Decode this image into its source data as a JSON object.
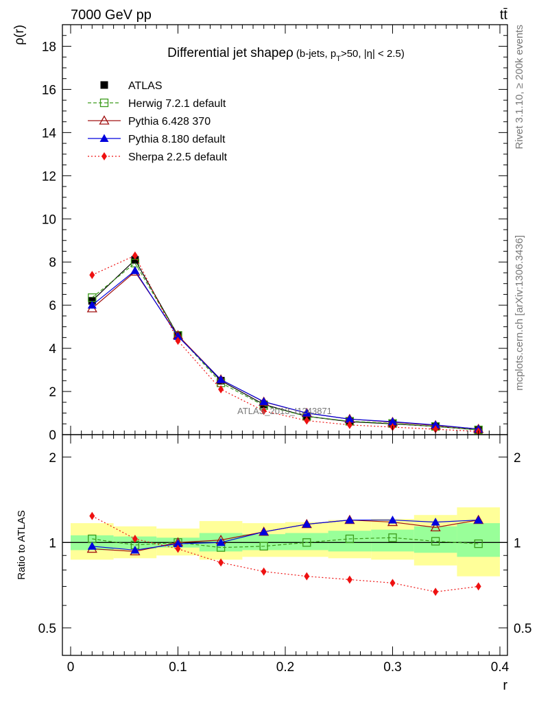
{
  "header": {
    "left": "7000 GeV pp",
    "right": "tt̄"
  },
  "side_text": {
    "rivet": "Rivet 3.1.10, ≥ 200k events",
    "mcplots": "mcplots.cern.ch [arXiv:1306.3436]"
  },
  "watermark": "ATLAS_2013_I1243871",
  "colors": {
    "atlas": "#000000",
    "herwig": "#3a9a1a",
    "pythia6": "#a01010",
    "pythia8": "#0000dd",
    "sherpa": "#ee1111",
    "band_inner": "#99ff99",
    "band_outer": "#ffff99"
  },
  "chart_data": [
    {
      "type": "line",
      "title": "Differential jet shapeρ",
      "title_small": "(b-jets, p",
      "title_sub": "T",
      "title_rest": ">50, |η| < 2.5)",
      "ylabel": "ρ(r)",
      "xlabel": "",
      "xlim": [
        0,
        0.4
      ],
      "ylim": [
        0,
        19
      ],
      "yticks": [
        0,
        2,
        4,
        6,
        8,
        10,
        12,
        14,
        16,
        18
      ],
      "legend_position": "top-left",
      "x": [
        0.02,
        0.06,
        0.1,
        0.14,
        0.18,
        0.22,
        0.26,
        0.3,
        0.34,
        0.38
      ],
      "series": [
        {
          "name": "ATLAS",
          "style": "data",
          "values": [
            6.2,
            8.1,
            4.6,
            2.5,
            1.4,
            0.85,
            0.6,
            0.5,
            0.38,
            0.22
          ]
        },
        {
          "name": "Herwig 7.2.1 default",
          "style": "herwig",
          "values": [
            6.35,
            7.95,
            4.6,
            2.4,
            1.35,
            0.85,
            0.62,
            0.52,
            0.38,
            0.22
          ]
        },
        {
          "name": "Pythia 6.428 370",
          "style": "pythia6",
          "values": [
            5.85,
            7.55,
            4.6,
            2.55,
            1.52,
            1.0,
            0.72,
            0.58,
            0.43,
            0.26
          ]
        },
        {
          "name": "Pythia 8.180 default",
          "style": "pythia8",
          "values": [
            6.0,
            7.6,
            4.55,
            2.55,
            1.53,
            1.0,
            0.72,
            0.6,
            0.45,
            0.26
          ]
        },
        {
          "name": "Sherpa 2.2.5 default",
          "style": "sherpa",
          "values": [
            7.4,
            8.3,
            4.35,
            2.1,
            1.1,
            0.65,
            0.45,
            0.35,
            0.25,
            0.15
          ]
        }
      ]
    },
    {
      "type": "line",
      "ylabel": "Ratio to ATLAS",
      "xlabel": "r",
      "xlim": [
        0,
        0.4
      ],
      "ylim": [
        0.4,
        2.4
      ],
      "yscale": "log",
      "xticks": [
        0,
        0.1,
        0.2,
        0.3,
        0.4
      ],
      "xticklabels": [
        "0",
        "0.1",
        "0.2",
        "0.3",
        "0.4"
      ],
      "yticks": [
        0.5,
        1,
        2
      ],
      "yticklabels": [
        "0.5",
        "1",
        "2"
      ],
      "x": [
        0.02,
        0.06,
        0.1,
        0.14,
        0.18,
        0.22,
        0.26,
        0.3,
        0.34,
        0.38
      ],
      "bands": {
        "edges": [
          0,
          0.04,
          0.08,
          0.12,
          0.16,
          0.2,
          0.24,
          0.28,
          0.32,
          0.36,
          0.4
        ],
        "inner_lo": [
          0.94,
          0.95,
          0.96,
          0.93,
          0.94,
          0.94,
          0.93,
          0.93,
          0.92,
          0.89
        ],
        "inner_hi": [
          1.06,
          1.05,
          1.04,
          1.08,
          1.07,
          1.08,
          1.1,
          1.11,
          1.14,
          1.17
        ],
        "outer_lo": [
          0.87,
          0.88,
          0.9,
          0.87,
          0.89,
          0.89,
          0.88,
          0.87,
          0.83,
          0.76
        ],
        "outer_hi": [
          1.17,
          1.14,
          1.12,
          1.19,
          1.17,
          1.18,
          1.2,
          1.21,
          1.25,
          1.33
        ]
      },
      "series": [
        {
          "name": "Herwig 7.2.1 default",
          "style": "herwig",
          "values": [
            1.03,
            0.98,
            1.0,
            0.96,
            0.97,
            1.0,
            1.03,
            1.04,
            1.01,
            0.99
          ]
        },
        {
          "name": "Pythia 6.428 370",
          "style": "pythia6",
          "values": [
            0.95,
            0.93,
            1.0,
            1.02,
            1.09,
            1.16,
            1.2,
            1.18,
            1.13,
            1.2
          ]
        },
        {
          "name": "Pythia 8.180 default",
          "style": "pythia8",
          "values": [
            0.97,
            0.94,
            0.99,
            1.0,
            1.09,
            1.16,
            1.2,
            1.2,
            1.18,
            1.2
          ]
        },
        {
          "name": "Sherpa 2.2.5 default",
          "style": "sherpa",
          "values": [
            1.24,
            1.03,
            0.95,
            0.85,
            0.79,
            0.76,
            0.74,
            0.72,
            0.67,
            0.7
          ]
        }
      ]
    }
  ]
}
